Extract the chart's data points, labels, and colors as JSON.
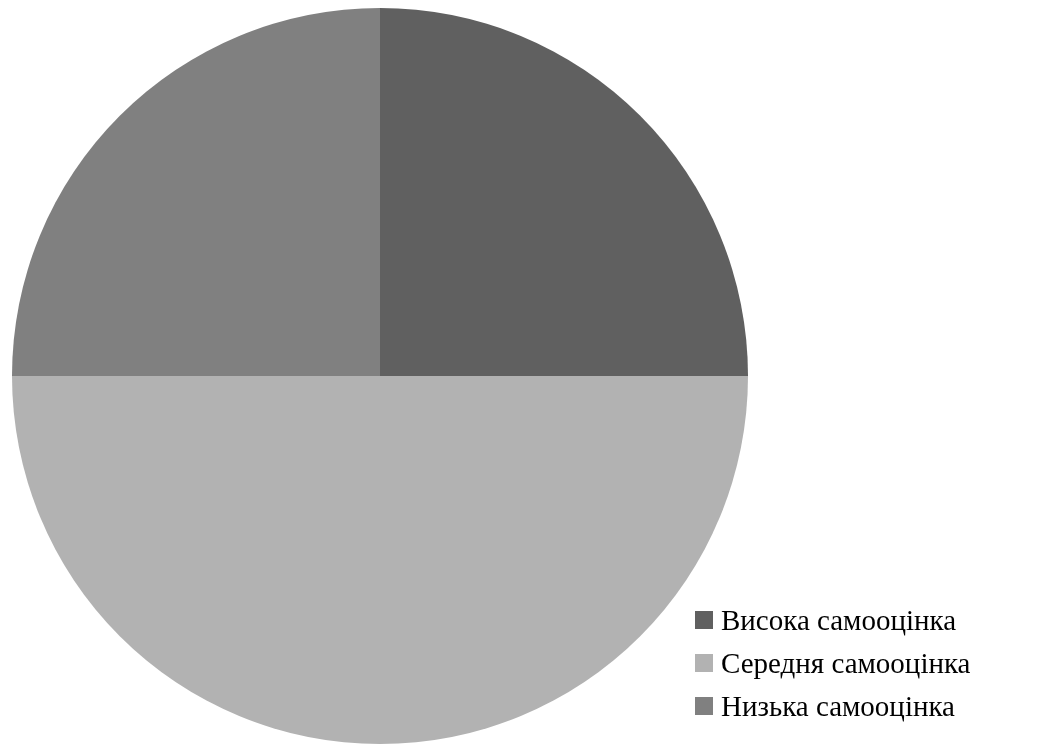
{
  "chart_data": {
    "type": "pie",
    "categories": [
      "Висока самооцінка",
      "Середня самооцінка",
      "Низька самооцінка"
    ],
    "values": [
      25,
      50,
      25
    ],
    "colors": [
      "#606060",
      "#b2b2b2",
      "#808080"
    ],
    "legend": "bottom right"
  }
}
